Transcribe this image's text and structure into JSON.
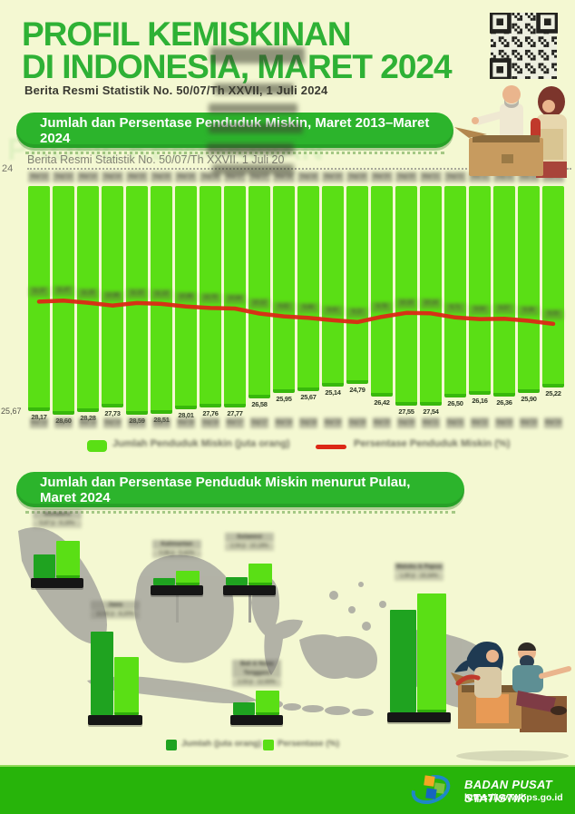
{
  "page": {
    "background": "#F4F8D2",
    "accent_green": "#2CB42C",
    "title_green": "#2EB135",
    "bar_green": "#5ADF15",
    "dark_green": "#1FA320",
    "line_red": "#DC2815",
    "footer_green": "#27B40A"
  },
  "header": {
    "title_line1": "PROFIL KEMISKINAN",
    "title_line2": "DI INDONESIA, MARET 2024",
    "subtitle": "Berita Resmi Statistik No. 50/07/Th XXVII, 1 Juli 2024",
    "qr_icon": "qr-code"
  },
  "artifacts": {
    "ghost_title": "PROFIL KEMISKINAN",
    "ghost_subtitle": "Berita Resmi Statistik No. 50/07/Th XXVII. 1 Juli 20",
    "left_edge_top": "24",
    "left_edge_bottom": "25,67"
  },
  "section_national": {
    "banner": "Jumlah dan Persentase Penduduk Miskin, Maret 2013–Maret 2024",
    "legend_jumlah": "Jumlah Penduduk Miskin (juta orang)",
    "legend_persen": "Persentase Penduduk Miskin (%)"
  },
  "section_island": {
    "banner": "Jumlah dan Persentase Penduduk Miskin menurut Pulau, Maret 2024",
    "legend_jumlah": "Jumlah (juta orang)",
    "legend_persen": "Persentase (%)"
  },
  "footer": {
    "org": "BADAN PUSAT STATISTIK",
    "url": "https://www.bps.go.id",
    "logo": "bps-logo"
  },
  "chart_data": [
    {
      "type": "bar+line",
      "title": "Jumlah dan Persentase Penduduk Miskin, Maret 2013–Maret 2024",
      "categories": [
        "Mar'13",
        "Sep'13",
        "Mar'14",
        "Sep'14",
        "Mar'15",
        "Sep'15",
        "Mar'16",
        "Sep'16",
        "Mar'17",
        "Sep'17",
        "Mar'18",
        "Sep'18",
        "Mar'19",
        "Sep'19",
        "Mar'20",
        "Sep'20",
        "Mar'21",
        "Sep'21",
        "Mar'22",
        "Sep'22",
        "Mar'23",
        "Mar'24"
      ],
      "series": [
        {
          "name": "Jumlah Penduduk Miskin (juta orang)",
          "type": "bar",
          "color": "#5ADF15",
          "values": [
            28.17,
            28.6,
            28.28,
            27.73,
            28.59,
            28.51,
            28.01,
            27.76,
            27.77,
            26.58,
            25.95,
            25.67,
            25.14,
            24.79,
            26.42,
            27.55,
            27.54,
            26.5,
            26.16,
            26.36,
            25.9,
            25.22
          ]
        },
        {
          "name": "Persentase Penduduk Miskin (%)",
          "type": "line",
          "color": "#DC2815",
          "values": [
            11.37,
            11.47,
            11.25,
            10.96,
            11.22,
            11.13,
            10.86,
            10.7,
            10.64,
            10.12,
            9.82,
            9.66,
            9.41,
            9.22,
            9.78,
            10.19,
            10.14,
            9.71,
            9.54,
            9.57,
            9.36,
            9.03
          ]
        }
      ],
      "legend_position": "bottom",
      "layout_note": "bars hang from top axis; value labels at bar tips; period labels top and bottom (pixelated)"
    },
    {
      "type": "bar",
      "title": "Jumlah dan Persentase Penduduk Miskin menurut Pulau, Maret 2024",
      "categories": [
        "Sumatera",
        "Jawa",
        "Kalimantan",
        "Sulawesi",
        "Bali & Nusa Tenggara",
        "Maluku & Papua"
      ],
      "series": [
        {
          "name": "Jumlah (juta orang)",
          "color": "#1FA320",
          "values": [
            5.67,
            12.62,
            0.96,
            2.04,
            2.03,
            1.9
          ]
        },
        {
          "name": "Persentase (%)",
          "color": "#5ADF15",
          "values": [
            9.19,
            8.2,
            5.42,
            10.19,
            12.93,
            19.34
          ]
        }
      ],
      "layout": [
        {
          "x": 34,
          "baseY": 637,
          "baseW": 58,
          "darkH": 26,
          "lightH": 41,
          "stem": false
        },
        {
          "x": 97,
          "baseY": 788,
          "baseW": 60,
          "darkH": 92,
          "lightH": 64,
          "stem": false
        },
        {
          "x": 166,
          "baseY": 645,
          "baseW": 58,
          "darkH": 8,
          "lightH": 16,
          "stem": true
        },
        {
          "x": 246,
          "baseY": 645,
          "baseW": 58,
          "darkH": 9,
          "lightH": 24,
          "stem": true
        },
        {
          "x": 254,
          "baseY": 788,
          "baseW": 58,
          "darkH": 14,
          "lightH": 27,
          "stem": false
        },
        {
          "x": 427,
          "baseY": 785,
          "baseW": 70,
          "darkH": 113,
          "lightH": 131,
          "stem": false
        }
      ]
    }
  ]
}
